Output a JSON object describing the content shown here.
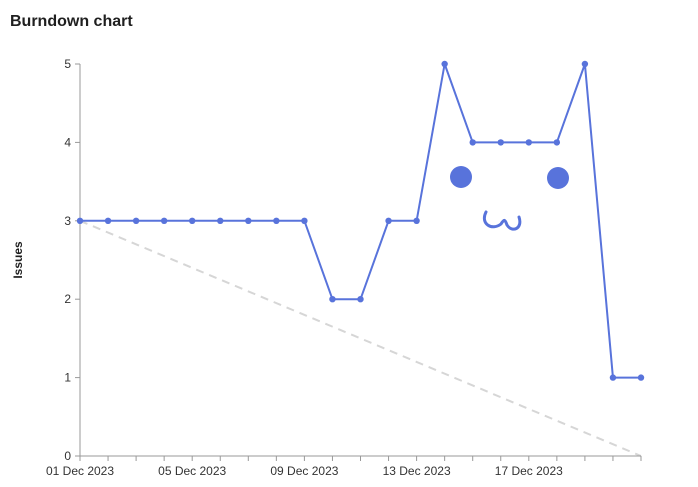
{
  "title": "Burndown chart",
  "colors": {
    "series": "#5873db",
    "ideal": "#d6d6d6",
    "axis": "#999999",
    "text": "#333333"
  },
  "chart_data": {
    "type": "line",
    "title": "Burndown chart",
    "xlabel": "",
    "ylabel": "Issues",
    "x": [
      "2023-12-01",
      "2023-12-02",
      "2023-12-03",
      "2023-12-04",
      "2023-12-05",
      "2023-12-06",
      "2023-12-07",
      "2023-12-08",
      "2023-12-09",
      "2023-12-10",
      "2023-12-11",
      "2023-12-12",
      "2023-12-13",
      "2023-12-14",
      "2023-12-15",
      "2023-12-16",
      "2023-12-17",
      "2023-12-18",
      "2023-12-19",
      "2023-12-20",
      "2023-12-21"
    ],
    "series": [
      {
        "values": [
          3,
          3,
          3,
          3,
          3,
          3,
          3,
          3,
          3,
          2,
          2,
          3,
          3,
          5,
          4,
          4,
          4,
          4,
          5,
          1,
          1
        ]
      }
    ],
    "ideal_line": {
      "x": [
        "2023-12-01",
        "2023-12-21"
      ],
      "values": [
        3,
        0
      ],
      "style": "dashed"
    },
    "ylim": [
      0,
      5
    ],
    "yticks": [
      0,
      1,
      2,
      3,
      4,
      5
    ],
    "xticks": [
      "01 Dec 2023",
      "05 Dec 2023",
      "09 Dec 2023",
      "13 Dec 2023",
      "17 Dec 2023"
    ],
    "xtick_dates": [
      "2023-12-01",
      "2023-12-05",
      "2023-12-09",
      "2023-12-13",
      "2023-12-17"
    ],
    "grid": false,
    "legend": "none"
  }
}
